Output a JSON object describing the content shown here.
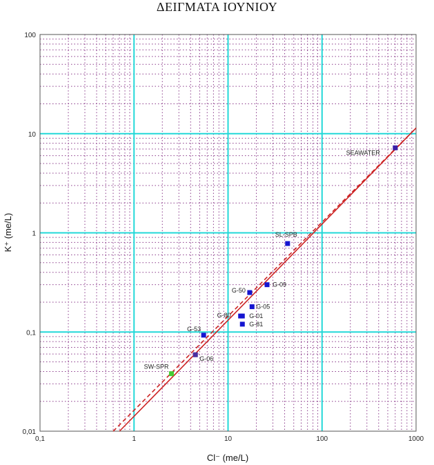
{
  "chart_data": {
    "type": "scatter",
    "title": "ΔΕΙΓΜΑΤΑ ΙΟΥΝΙΟΥ",
    "xlabel": "Cl⁻ (me/L)",
    "ylabel": "K⁺ (me/L)",
    "x_scale": "log",
    "y_scale": "log",
    "xlim": [
      0.1,
      1000
    ],
    "ylim": [
      0.01,
      100
    ],
    "x_ticks": [
      "0,1",
      "1",
      "10",
      "100",
      "1000"
    ],
    "y_ticks": [
      "0,01",
      "0,1",
      "1",
      "10",
      "100"
    ],
    "grid": true,
    "points": [
      {
        "label": "SEAWATER",
        "x": 600,
        "y": 7.2,
        "color": "#3a1fa8"
      },
      {
        "label": "SL-SPB",
        "x": 43,
        "y": 0.78,
        "color": "#1515d0"
      },
      {
        "label": "G-09",
        "x": 26,
        "y": 0.3,
        "color": "#1515d0"
      },
      {
        "label": "G-50",
        "x": 17,
        "y": 0.25,
        "color": "#1515d0"
      },
      {
        "label": "G-05",
        "x": 18,
        "y": 0.18,
        "color": "#1515d0"
      },
      {
        "label": "G-80",
        "x": 13.6,
        "y": 0.145,
        "color": "#1515d0"
      },
      {
        "label": "G-01",
        "x": 14.2,
        "y": 0.145,
        "color": "#1515d0"
      },
      {
        "label": "G-81",
        "x": 14.2,
        "y": 0.12,
        "color": "#1515d0"
      },
      {
        "label": "G-53",
        "x": 5.5,
        "y": 0.093,
        "color": "#1515d0"
      },
      {
        "label": "G-06",
        "x": 4.5,
        "y": 0.059,
        "color": "#4a2fa0"
      },
      {
        "label": "SW-SPR",
        "x": 2.5,
        "y": 0.038,
        "color": "#44cc33"
      }
    ],
    "lines": [
      {
        "style": "solid",
        "color": "#cc2222",
        "x": [
          0.7,
          1000
        ],
        "y": [
          0.01,
          11.4
        ]
      },
      {
        "style": "dashed",
        "color": "#cc2222",
        "x": [
          0.6,
          1000
        ],
        "y": [
          0.01,
          11.4
        ]
      }
    ]
  }
}
